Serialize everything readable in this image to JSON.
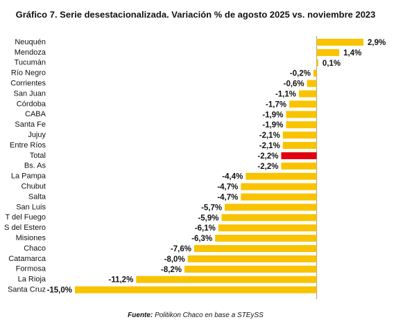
{
  "chart_data": {
    "type": "bar",
    "orientation": "horizontal",
    "title": "Gráfico 7. Serie desestacionalizada. Variación % de agosto 2025 vs. noviembre 2023",
    "source_label": "Fuente:",
    "source": "Politikon Chaco en base a STEySS",
    "categories": [
      "Neuquén",
      "Mendoza",
      "Tucumán",
      "Río Negro",
      "Corrientes",
      "San Juan",
      "Córdoba",
      "CABA",
      "Santa Fe",
      "Jujuy",
      "Entre Ríos",
      "Total",
      "Bs. As",
      "La Pampa",
      "Chubut",
      "Salta",
      "San Luis",
      "T del Fuego",
      "S del Estero",
      "Misiones",
      "Chaco",
      "Catamarca",
      "Formosa",
      "La Rioja",
      "Santa Cruz"
    ],
    "values": [
      2.9,
      1.4,
      0.1,
      -0.2,
      -0.6,
      -1.1,
      -1.7,
      -1.9,
      -1.9,
      -2.1,
      -2.1,
      -2.2,
      -2.2,
      -4.4,
      -4.7,
      -4.7,
      -5.7,
      -5.9,
      -6.1,
      -6.3,
      -7.6,
      -8.0,
      -8.2,
      -11.2,
      -15.0
    ],
    "value_labels": [
      "2,9%",
      "1,4%",
      "0,1%",
      "-0,2%",
      "-0,6%",
      "-1,1%",
      "-1,7%",
      "-1,9%",
      "-1,9%",
      "-2,1%",
      "-2,1%",
      "-2,2%",
      "-2,2%",
      "-4,4%",
      "-4,7%",
      "-4,7%",
      "-5,7%",
      "-5,9%",
      "-6,1%",
      "-6,3%",
      "-7,6%",
      "-8,0%",
      "-8,2%",
      "-11,2%",
      "-15,0%"
    ],
    "color": "#f9c300",
    "highlight": {
      "category": "Total",
      "color": "#e2000f"
    },
    "xlim": [
      -15,
      2.9
    ]
  }
}
